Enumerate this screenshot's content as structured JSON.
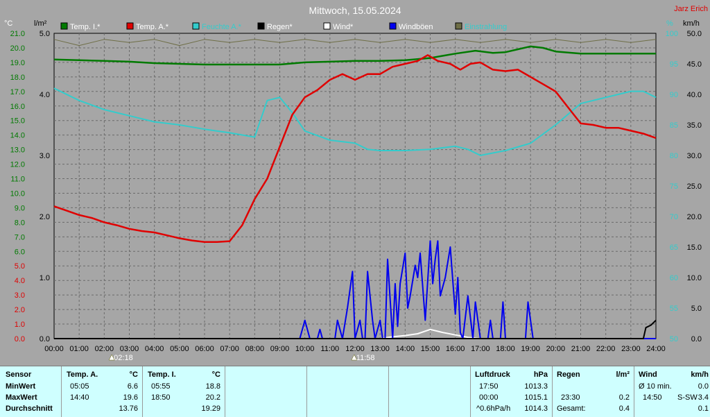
{
  "title": "Mittwoch, 15.05.2024",
  "author": "Jarz Erich",
  "axis_units": {
    "temp": "°C",
    "rain": "l/m²",
    "humidity": "%",
    "wind": "km/h"
  },
  "legend": [
    {
      "label": "Temp. I.*",
      "color": "#007a00",
      "text_color": "#ffffff"
    },
    {
      "label": "Temp. A.*",
      "color": "#e00000",
      "text_color": "#ffffff"
    },
    {
      "label": "Feuchte A.*",
      "color": "#33cccc",
      "text_color": "#33cccc"
    },
    {
      "label": "Regen*",
      "color": "#000000",
      "text_color": "#ffffff"
    },
    {
      "label": "Wind*",
      "color": "#ffffff",
      "text_color": "#ffffff"
    },
    {
      "label": "Windböen",
      "color": "#0000ee",
      "text_color": "#ffffff"
    },
    {
      "label": "Einstrahlung",
      "color": "#6e6e46",
      "text_color": "#33cccc"
    }
  ],
  "markers": [
    {
      "label": "02:18",
      "hour": 2.3
    },
    {
      "label": "11:58",
      "hour": 11.967
    }
  ],
  "chart_data": {
    "type": "line",
    "x_axis": {
      "label": "",
      "range": [
        0,
        24
      ],
      "ticks": [
        "00:00",
        "01:00",
        "02:00",
        "03:00",
        "04:00",
        "05:00",
        "06:00",
        "07:00",
        "08:00",
        "09:00",
        "10:00",
        "11:00",
        "12:00",
        "13:00",
        "14:00",
        "15:00",
        "16:00",
        "17:00",
        "18:00",
        "19:00",
        "20:00",
        "21:00",
        "22:00",
        "23:00",
        "24:00"
      ]
    },
    "axes": {
      "temp": {
        "range": [
          0,
          21
        ],
        "ticks": [
          "0.0",
          "1.0",
          "2.0",
          "3.0",
          "4.0",
          "5.0",
          "6.0",
          "7.0",
          "8.0",
          "9.0",
          "10.0",
          "11.0",
          "12.0",
          "13.0",
          "14.0",
          "15.0",
          "16.0",
          "17.0",
          "18.0",
          "19.0",
          "20.0",
          "21.0"
        ],
        "color": "#007a00"
      },
      "rain": {
        "range": [
          0,
          5
        ],
        "ticks": [
          "0.0",
          "1.0",
          "2.0",
          "3.0",
          "4.0",
          "5.0"
        ],
        "color": "#000000"
      },
      "humidity": {
        "range": [
          50,
          100
        ],
        "ticks": [
          "50",
          "55",
          "60",
          "65",
          "70",
          "75",
          "80",
          "85",
          "90",
          "95",
          "100"
        ],
        "color": "#33cccc"
      },
      "wind": {
        "range": [
          0,
          50
        ],
        "ticks": [
          "0.0",
          "5.0",
          "10.0",
          "15.0",
          "20.0",
          "25.0",
          "30.0",
          "35.0",
          "40.0",
          "45.0",
          "50.0"
        ],
        "color": "#000000"
      }
    },
    "grid": true,
    "series": [
      {
        "name": "Temp. I.*",
        "axis": "temp",
        "color": "#007a00",
        "points": [
          [
            0,
            19.2
          ],
          [
            1,
            19.15
          ],
          [
            2,
            19.1
          ],
          [
            3,
            19.05
          ],
          [
            4,
            18.95
          ],
          [
            5,
            18.9
          ],
          [
            6,
            18.85
          ],
          [
            7,
            18.85
          ],
          [
            8,
            18.85
          ],
          [
            9,
            18.85
          ],
          [
            10,
            19.0
          ],
          [
            11,
            19.05
          ],
          [
            12,
            19.1
          ],
          [
            13,
            19.1
          ],
          [
            14,
            19.15
          ],
          [
            15,
            19.3
          ],
          [
            16,
            19.6
          ],
          [
            16.8,
            19.8
          ],
          [
            17.5,
            19.65
          ],
          [
            18,
            19.7
          ],
          [
            18.5,
            19.9
          ],
          [
            19,
            20.1
          ],
          [
            19.5,
            20.0
          ],
          [
            20,
            19.75
          ],
          [
            21,
            19.6
          ],
          [
            22,
            19.6
          ],
          [
            23,
            19.6
          ],
          [
            24,
            19.6
          ]
        ]
      },
      {
        "name": "Temp. A.*",
        "axis": "temp",
        "color": "#e00000",
        "points": [
          [
            0,
            9.1
          ],
          [
            0.5,
            8.8
          ],
          [
            1,
            8.5
          ],
          [
            1.5,
            8.3
          ],
          [
            2,
            8.0
          ],
          [
            2.5,
            7.8
          ],
          [
            3,
            7.55
          ],
          [
            3.5,
            7.4
          ],
          [
            4,
            7.3
          ],
          [
            4.5,
            7.1
          ],
          [
            5,
            6.9
          ],
          [
            5.5,
            6.75
          ],
          [
            6,
            6.65
          ],
          [
            6.5,
            6.65
          ],
          [
            7,
            6.7
          ],
          [
            7.5,
            7.8
          ],
          [
            8,
            9.6
          ],
          [
            8.5,
            11.0
          ],
          [
            9,
            13.2
          ],
          [
            9.5,
            15.4
          ],
          [
            10,
            16.6
          ],
          [
            10.5,
            17.1
          ],
          [
            11,
            17.8
          ],
          [
            11.5,
            18.2
          ],
          [
            12,
            17.8
          ],
          [
            12.5,
            18.2
          ],
          [
            13,
            18.2
          ],
          [
            13.5,
            18.7
          ],
          [
            14,
            18.9
          ],
          [
            14.5,
            19.1
          ],
          [
            14.9,
            19.5
          ],
          [
            15.3,
            19.1
          ],
          [
            15.8,
            18.9
          ],
          [
            16.2,
            18.5
          ],
          [
            16.6,
            18.9
          ],
          [
            17,
            19.0
          ],
          [
            17.5,
            18.5
          ],
          [
            18,
            18.4
          ],
          [
            18.5,
            18.5
          ],
          [
            19,
            18.0
          ],
          [
            19.5,
            17.5
          ],
          [
            20,
            17.0
          ],
          [
            20.5,
            15.9
          ],
          [
            21,
            14.8
          ],
          [
            21.5,
            14.7
          ],
          [
            22,
            14.5
          ],
          [
            22.5,
            14.5
          ],
          [
            23,
            14.3
          ],
          [
            23.5,
            14.1
          ],
          [
            24,
            13.8
          ]
        ]
      },
      {
        "name": "Feuchte A.*",
        "axis": "humidity",
        "color": "#33cccc",
        "points": [
          [
            0,
            91
          ],
          [
            1,
            89
          ],
          [
            2,
            87.5
          ],
          [
            3,
            86.5
          ],
          [
            4,
            85.5
          ],
          [
            5,
            85
          ],
          [
            6,
            84.3
          ],
          [
            7,
            83.7
          ],
          [
            8,
            83
          ],
          [
            8.5,
            89
          ],
          [
            9,
            89.5
          ],
          [
            9.5,
            87
          ],
          [
            10,
            84
          ],
          [
            11,
            82.5
          ],
          [
            12,
            82
          ],
          [
            12.5,
            81
          ],
          [
            13,
            80.8
          ],
          [
            14,
            80.8
          ],
          [
            15,
            81
          ],
          [
            16,
            81.5
          ],
          [
            16.5,
            81
          ],
          [
            17,
            80
          ],
          [
            18,
            80.8
          ],
          [
            19,
            82
          ],
          [
            20,
            85
          ],
          [
            21,
            88.5
          ],
          [
            22,
            89.5
          ],
          [
            23,
            90.5
          ],
          [
            23.5,
            90.5
          ],
          [
            24,
            89.5
          ]
        ]
      },
      {
        "name": "Einstrahlung",
        "axis": "humidity",
        "color": "#6e6e46",
        "points": [
          [
            0,
            99
          ],
          [
            1,
            98
          ],
          [
            2,
            99
          ],
          [
            3,
            98.5
          ],
          [
            4,
            99
          ],
          [
            5,
            98
          ],
          [
            6,
            99
          ],
          [
            7,
            98.5
          ],
          [
            8,
            99
          ],
          [
            9,
            98.5
          ],
          [
            10,
            99
          ],
          [
            11,
            98.5
          ],
          [
            12,
            99
          ],
          [
            13,
            98.5
          ],
          [
            14,
            99
          ],
          [
            15,
            98.5
          ],
          [
            16,
            99
          ],
          [
            17,
            98.5
          ],
          [
            18,
            99
          ],
          [
            19,
            98.5
          ],
          [
            20,
            99
          ],
          [
            21,
            98.5
          ],
          [
            22,
            99
          ],
          [
            23,
            98.5
          ],
          [
            24,
            99
          ]
        ]
      },
      {
        "name": "Windböen",
        "axis": "wind",
        "color": "#0000ee",
        "points": [
          [
            0,
            0
          ],
          [
            9.8,
            0
          ],
          [
            10,
            3
          ],
          [
            10.2,
            0
          ],
          [
            10.5,
            0
          ],
          [
            10.6,
            1.5
          ],
          [
            10.7,
            0
          ],
          [
            11.2,
            0
          ],
          [
            11.3,
            3
          ],
          [
            11.5,
            0
          ],
          [
            11.7,
            5
          ],
          [
            11.9,
            11
          ],
          [
            12,
            0
          ],
          [
            12.2,
            3
          ],
          [
            12.3,
            0
          ],
          [
            12.4,
            0
          ],
          [
            12.5,
            11
          ],
          [
            12.7,
            3
          ],
          [
            12.8,
            0
          ],
          [
            13.0,
            3
          ],
          [
            13.1,
            0
          ],
          [
            13.2,
            0
          ],
          [
            13.3,
            13
          ],
          [
            13.5,
            0
          ],
          [
            13.6,
            9
          ],
          [
            13.7,
            2
          ],
          [
            13.8,
            9
          ],
          [
            14.0,
            14
          ],
          [
            14.1,
            5
          ],
          [
            14.2,
            7
          ],
          [
            14.4,
            12
          ],
          [
            14.5,
            10
          ],
          [
            14.6,
            14
          ],
          [
            14.8,
            3
          ],
          [
            15.0,
            16
          ],
          [
            15.1,
            9
          ],
          [
            15.2,
            13
          ],
          [
            15.3,
            16
          ],
          [
            15.4,
            7
          ],
          [
            15.6,
            10
          ],
          [
            15.8,
            15
          ],
          [
            16.0,
            4
          ],
          [
            16.1,
            10
          ],
          [
            16.2,
            1
          ],
          [
            16.3,
            0
          ],
          [
            16.5,
            7
          ],
          [
            16.7,
            0
          ],
          [
            16.8,
            6
          ],
          [
            17.0,
            0
          ],
          [
            17.3,
            0
          ],
          [
            17.4,
            3
          ],
          [
            17.5,
            0
          ],
          [
            17.8,
            0
          ],
          [
            17.9,
            6
          ],
          [
            18.0,
            0
          ],
          [
            18.8,
            0
          ],
          [
            18.9,
            6
          ],
          [
            19.1,
            0
          ],
          [
            19.3,
            0
          ],
          [
            24,
            0
          ]
        ]
      },
      {
        "name": "Wind*",
        "axis": "wind",
        "color": "#ffffff",
        "points": [
          [
            0,
            0
          ],
          [
            13,
            0
          ],
          [
            13.5,
            0.3
          ],
          [
            14,
            0.5
          ],
          [
            14.5,
            0.8
          ],
          [
            15,
            1.5
          ],
          [
            15.5,
            1.0
          ],
          [
            16,
            0.6
          ],
          [
            16.5,
            0.2
          ],
          [
            17,
            0
          ],
          [
            24,
            0
          ]
        ]
      },
      {
        "name": "Regen*",
        "axis": "rain",
        "color": "#000000",
        "points": [
          [
            0,
            0
          ],
          [
            23.5,
            0
          ],
          [
            23.6,
            0.18
          ],
          [
            23.8,
            0.22
          ],
          [
            24,
            0.3
          ]
        ]
      }
    ]
  },
  "stats": {
    "sensor_header": "Sensor",
    "row_labels": [
      "MinWert",
      "MaxWert",
      "Durchschnitt"
    ],
    "temp_a": {
      "header": "Temp. A.",
      "unit": "°C",
      "min_time": "05:05",
      "min_val": "6.6",
      "max_time": "14:40",
      "max_val": "19.6",
      "avg": "13.76"
    },
    "temp_i": {
      "header": "Temp. I.",
      "unit": "°C",
      "min_time": "05:55",
      "min_val": "18.8",
      "max_time": "18:50",
      "max_val": "20.2",
      "avg": "19.29"
    },
    "pressure": {
      "header": "Luftdruck",
      "unit": "hPa",
      "r1_label": "17:50",
      "r1_val": "1013.3",
      "r2_label": "00:00",
      "r2_val": "1015.1",
      "r3_label": "^0.6hPa/h",
      "r3_val": "1014.3"
    },
    "rain": {
      "header": "Regen",
      "unit": "l/m²",
      "r2_label": "23:30",
      "r2_val": "0.2",
      "r3_label": "Gesamt:",
      "r3_val": "0.4"
    },
    "wind": {
      "header": "Wind",
      "unit": "km/h",
      "r1_label": "Ø 10 min.",
      "r1_val": "0.0",
      "r2_label": "14:50",
      "r2_dir": "S-SW",
      "r2_val": "3.4",
      "r3_val": "0.1"
    }
  }
}
